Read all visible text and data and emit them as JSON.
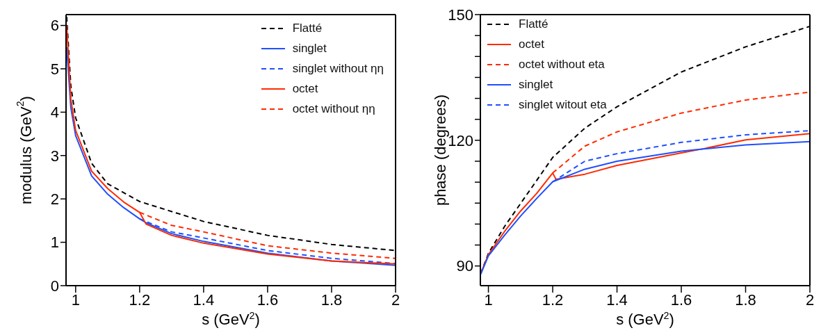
{
  "chart_data": [
    {
      "type": "line",
      "xlabel": "s (GeV$^{2}$)",
      "ylabel": "modulus  (GeV$^{2}$)",
      "xlim": [
        0.97,
        2
      ],
      "ylim": [
        0,
        6.25
      ],
      "xticks": [
        1,
        1.2,
        1.4,
        1.6,
        1.8,
        2
      ],
      "yticks": [
        0,
        1,
        2,
        3,
        4,
        5,
        6
      ],
      "legend": "top right",
      "grid": false,
      "series": [
        {
          "name": "Flatté",
          "color": "#000000",
          "line_style": "dashed",
          "x": [
            0.972,
            0.985,
            1,
            1.05,
            1.1,
            1.2,
            1.4,
            1.6,
            1.8,
            2
          ],
          "values": [
            6.2,
            4.6,
            3.87,
            2.82,
            2.35,
            1.94,
            1.48,
            1.16,
            0.95,
            0.81
          ]
        },
        {
          "name": "singlet",
          "color": "#1f4fff",
          "line_style": "solid",
          "x": [
            0.972,
            0.985,
            1,
            1.05,
            1.1,
            1.15,
            1.2,
            1.22,
            1.3,
            1.4,
            1.6,
            1.8,
            2
          ],
          "values": [
            5.5,
            4.1,
            3.46,
            2.53,
            2.11,
            1.8,
            1.54,
            1.45,
            1.2,
            1.02,
            0.75,
            0.57,
            0.47
          ]
        },
        {
          "name": "singlet without ηη",
          "color": "#1f4fff",
          "line_style": "dashed",
          "x": [
            1.2,
            1.3,
            1.4,
            1.6,
            1.8,
            2
          ],
          "values": [
            1.54,
            1.24,
            1.1,
            0.81,
            0.63,
            0.51
          ]
        },
        {
          "name": "octet",
          "color": "#ff2a00",
          "line_style": "solid",
          "x": [
            0.972,
            0.985,
            1,
            1.05,
            1.1,
            1.15,
            1.2,
            1.22,
            1.3,
            1.4,
            1.6,
            1.8,
            2
          ],
          "values": [
            6.0,
            4.3,
            3.58,
            2.64,
            2.24,
            1.93,
            1.69,
            1.42,
            1.16,
            0.98,
            0.73,
            0.57,
            0.5
          ]
        },
        {
          "name": "octet without ηη",
          "color": "#ff2a00",
          "line_style": "dashed",
          "x": [
            1.2,
            1.3,
            1.4,
            1.6,
            1.8,
            2
          ],
          "values": [
            1.69,
            1.39,
            1.24,
            0.92,
            0.75,
            0.63
          ]
        }
      ]
    },
    {
      "type": "line",
      "xlabel": "s (GeV$^{2}$)",
      "ylabel": "phase  (degrees)",
      "xlim": [
        0.975,
        2
      ],
      "ylim": [
        85.3,
        150
      ],
      "xticks": [
        1,
        1.2,
        1.4,
        1.6,
        1.8,
        2
      ],
      "yticks": [
        90,
        {
          "value": 95,
          "label": null
        },
        {
          "value": 100,
          "label": null
        },
        {
          "value": 105,
          "label": null
        },
        {
          "value": 110,
          "label": null
        },
        {
          "value": 115,
          "label": null
        },
        120,
        {
          "value": 125,
          "label": null
        },
        {
          "value": 130,
          "label": null
        },
        {
          "value": 135,
          "label": null
        },
        {
          "value": 140,
          "label": null
        },
        {
          "value": 145,
          "label": null
        },
        150
      ],
      "legend": "top left",
      "grid": false,
      "series": [
        {
          "name": "Flatté",
          "color": "#000000",
          "line_style": "dashed",
          "x": [
            0.976,
            1,
            1.05,
            1.1,
            1.2,
            1.3,
            1.4,
            1.6,
            1.8,
            2
          ],
          "values": [
            88.2,
            93.0,
            99.4,
            104.9,
            115.9,
            122.9,
            128.0,
            136.3,
            142.3,
            147.2
          ]
        },
        {
          "name": "octet",
          "color": "#ff2a00",
          "line_style": "solid",
          "x": [
            0.976,
            1,
            1.05,
            1.1,
            1.15,
            1.2,
            1.21,
            1.3,
            1.4,
            1.6,
            1.67,
            1.8,
            2
          ],
          "values": [
            88.2,
            92.7,
            98.2,
            103.1,
            107.3,
            112.2,
            110.7,
            111.9,
            114.0,
            117.0,
            118.0,
            120.1,
            121.6
          ]
        },
        {
          "name": "octet without eta",
          "color": "#ff2a00",
          "line_style": "dashed",
          "x": [
            1.2,
            1.3,
            1.4,
            1.6,
            1.8,
            2
          ],
          "values": [
            112.2,
            118.6,
            122.0,
            126.5,
            129.6,
            131.5
          ]
        },
        {
          "name": "singlet",
          "color": "#1f4fff",
          "line_style": "solid",
          "x": [
            0.976,
            1,
            1.05,
            1.1,
            1.15,
            1.2,
            1.3,
            1.4,
            1.6,
            1.8,
            2
          ],
          "values": [
            88.0,
            92.4,
            97.3,
            101.9,
            106.1,
            110.1,
            113.1,
            115.0,
            117.4,
            118.9,
            119.7
          ]
        },
        {
          "name": "singlet witout eta",
          "color": "#1f4fff",
          "line_style": "dashed",
          "x": [
            1.2,
            1.3,
            1.4,
            1.6,
            1.8,
            2
          ],
          "values": [
            110.1,
            115.0,
            116.8,
            119.5,
            121.3,
            122.3
          ]
        }
      ]
    }
  ]
}
